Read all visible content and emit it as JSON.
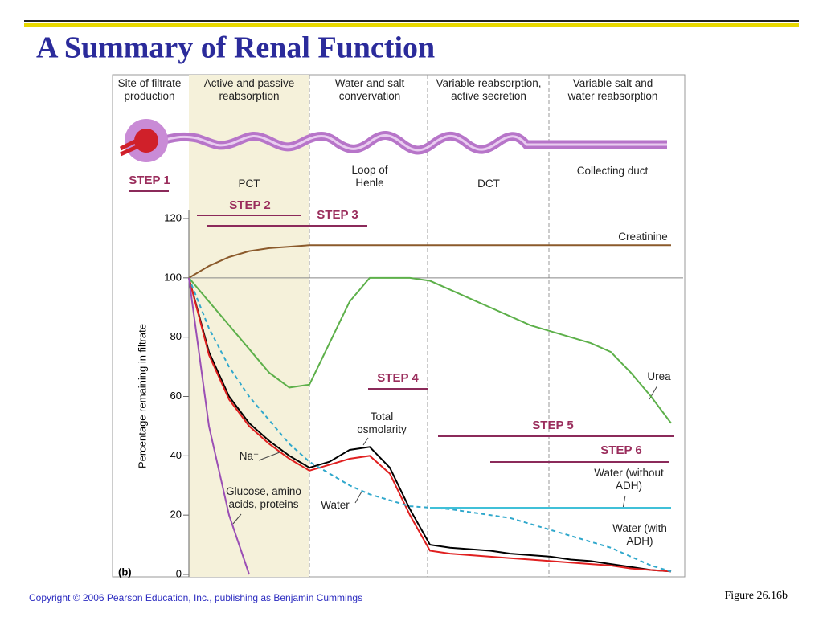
{
  "title": "A Summary of Renal Function",
  "figure_label": "Figure 26.16b",
  "copyright": "Copyright © 2006 Pearson Education, Inc., publishing as Benjamin Cummings",
  "panel_label": "(b)",
  "regions": [
    "Site of filtrate production",
    "Active and passive reabsorption",
    "Water and salt convervation",
    "Variable reabsorption, active secretion",
    "Variable salt and water reabsorption"
  ],
  "structures": [
    "PCT",
    "Loop of Henle",
    "DCT",
    "Collecting duct"
  ],
  "steps": [
    "STEP 1",
    "STEP 2",
    "STEP 3",
    "STEP 4",
    "STEP 5",
    "STEP 6"
  ],
  "chart_data": {
    "type": "line",
    "y_label": "Percentage remaining in filtrate",
    "categories": [
      null,
      null,
      null,
      null,
      null,
      null,
      null,
      null,
      null,
      null,
      null,
      null,
      null,
      null,
      null,
      null,
      null,
      null,
      null,
      null,
      null,
      null,
      null,
      null,
      null
    ],
    "ylim": [
      0,
      120
    ],
    "yticks": [
      0,
      20,
      40,
      60,
      80,
      100,
      120
    ],
    "reference_line": 100,
    "series": [
      {
        "name": "Creatinine",
        "color": "#8b5a2b",
        "values": [
          100,
          104,
          107,
          109,
          110,
          110.5,
          111,
          111,
          111,
          111,
          111,
          111,
          111,
          111,
          111,
          111,
          111,
          111,
          111,
          111,
          111,
          111,
          111,
          111,
          111
        ]
      },
      {
        "name": "Urea",
        "color": "#5db04a",
        "values": [
          100,
          92,
          84,
          76,
          68,
          63,
          64,
          78,
          92,
          100,
          100,
          100,
          99,
          96,
          93,
          90,
          87,
          84,
          82,
          80,
          78,
          75,
          68,
          60,
          51
        ]
      },
      {
        "name": "Total osmolarity",
        "color": "#000000",
        "values": [
          100,
          75,
          60,
          51,
          45,
          40,
          36,
          38,
          42,
          43,
          36,
          22,
          10,
          9,
          8.5,
          8,
          7,
          6.5,
          6,
          5,
          4.5,
          3.5,
          2.5,
          1.5,
          1
        ]
      },
      {
        "name": "Na⁺",
        "color": "#e02020",
        "values": [
          100,
          74,
          59,
          50,
          44,
          39,
          35,
          37,
          39,
          40,
          34,
          20,
          8,
          7,
          6.5,
          6,
          5.5,
          5,
          4.5,
          4,
          3.5,
          3,
          2,
          1.5,
          1
        ]
      },
      {
        "name": "Water",
        "color": "#30a8cc",
        "dashed": true,
        "values": [
          100,
          83,
          70,
          60,
          52,
          44,
          38,
          34,
          30,
          27,
          25,
          23,
          22.5,
          22,
          21,
          20,
          19,
          17,
          15,
          13,
          11,
          9,
          6,
          3,
          1
        ]
      },
      {
        "name": "Water (without ADH)",
        "color": "#40c0d8",
        "values": [
          null,
          null,
          null,
          null,
          null,
          null,
          null,
          null,
          null,
          null,
          null,
          null,
          22.5,
          22.5,
          22.5,
          22.5,
          22.5,
          22.5,
          22.5,
          22.5,
          22.5,
          22.5,
          22.5,
          22.5,
          22.5
        ]
      },
      {
        "name": "Glucose, amino acids, proteins",
        "color": "#9b4fb5",
        "values": [
          100,
          50,
          20,
          0,
          null,
          null,
          null,
          null,
          null,
          null,
          null,
          null,
          null,
          null,
          null,
          null,
          null,
          null,
          null,
          null,
          null,
          null,
          null,
          null,
          null
        ]
      }
    ],
    "annotations": [
      "Water (with ADH)"
    ]
  }
}
